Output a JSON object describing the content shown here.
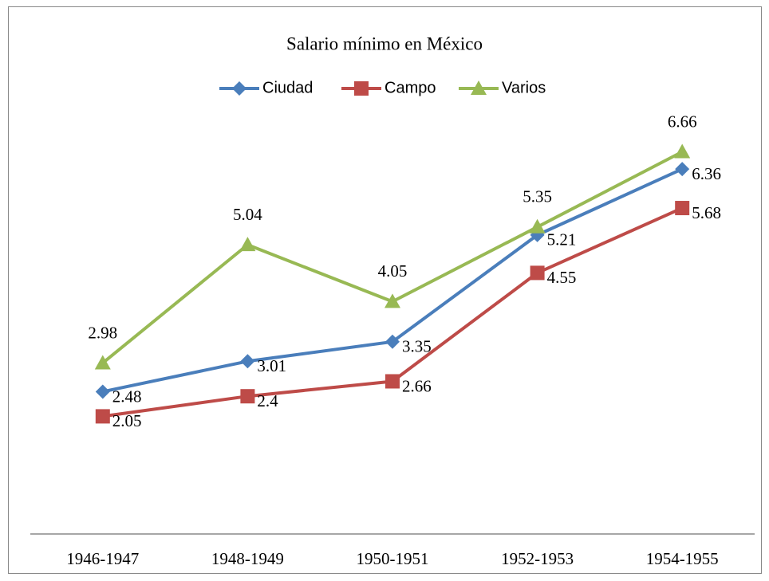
{
  "chart_data": {
    "type": "line",
    "title": "Salario mínimo en México",
    "categories": [
      "1946-1947",
      "1948-1949",
      "1950-1951",
      "1952-1953",
      "1954-1955"
    ],
    "series": [
      {
        "name": "Ciudad",
        "color": "#4a7ebb",
        "marker": "diamond",
        "values": [
          2.48,
          3.01,
          3.35,
          5.21,
          6.36
        ]
      },
      {
        "name": "Campo",
        "color": "#be4b48",
        "marker": "square",
        "values": [
          2.05,
          2.4,
          2.66,
          4.55,
          5.68
        ]
      },
      {
        "name": "Varios",
        "color": "#98b954",
        "marker": "triangle",
        "values": [
          2.98,
          5.04,
          4.05,
          5.35,
          6.66
        ]
      }
    ],
    "ylim": [
      0,
      7
    ],
    "legend": "top"
  }
}
